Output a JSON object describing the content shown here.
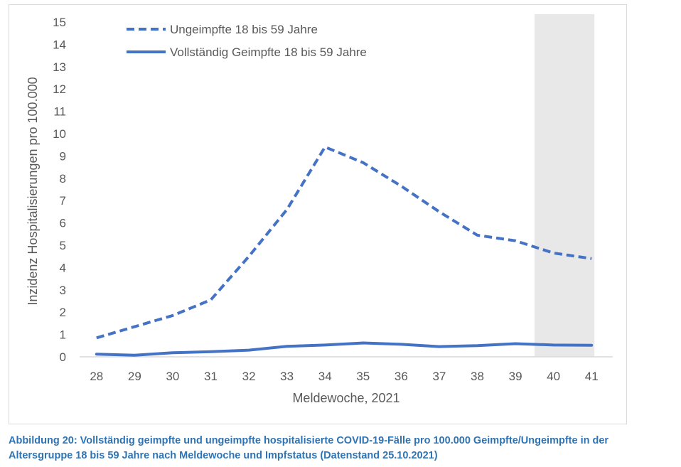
{
  "caption": {
    "line1": "Abbildung 20: Vollständig geimpfte und ungeimpfte hospitalisierte COVID-19-Fälle pro 100.000 Geimpfte/Ungeimpfte in der",
    "line2": "Altersgruppe 18 bis 59 Jahre nach Meldewoche und Impfstatus (Datenstand 25.10.2021)"
  },
  "chart_data": {
    "type": "line",
    "title": "",
    "xlabel": "Meldewoche, 2021",
    "ylabel": "Inzidenz Hospitalisierungen pro 100.000",
    "x": [
      28,
      29,
      30,
      31,
      32,
      33,
      34,
      35,
      36,
      37,
      38,
      39,
      40,
      41
    ],
    "ylim": [
      0,
      15
    ],
    "yticks": [
      0,
      1,
      2,
      3,
      4,
      5,
      6,
      7,
      8,
      9,
      10,
      11,
      12,
      13,
      14,
      15
    ],
    "grid": false,
    "legend_position": "top-left",
    "shaded_region": {
      "x_from": 39.5,
      "x_to": 41,
      "color": "#e8e8e8"
    },
    "series": [
      {
        "name": "Ungeimpfte 18 bis 59 Jahre",
        "style": "dashed",
        "color": "#4472c4",
        "values": [
          0.85,
          1.35,
          1.85,
          2.55,
          4.5,
          6.6,
          9.4,
          8.7,
          7.65,
          6.5,
          5.45,
          5.2,
          4.65,
          4.4
        ]
      },
      {
        "name": "Vollständig Geimpfte 18 bis 59 Jahre",
        "style": "solid",
        "color": "#4472c4",
        "values": [
          0.12,
          0.07,
          0.18,
          0.23,
          0.3,
          0.47,
          0.53,
          0.62,
          0.56,
          0.46,
          0.5,
          0.59,
          0.53,
          0.52
        ]
      }
    ]
  }
}
